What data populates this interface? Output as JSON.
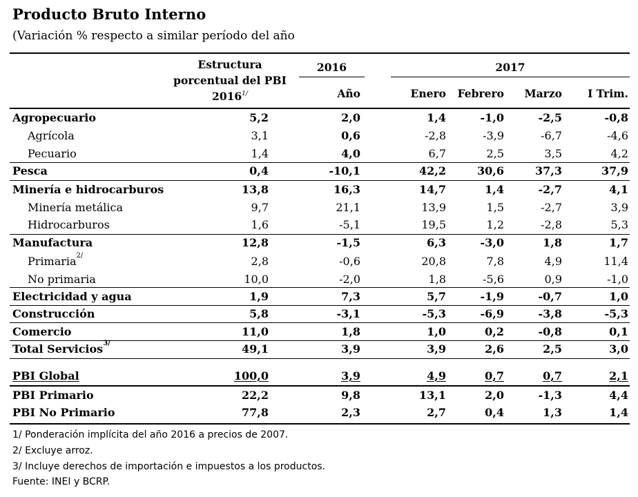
{
  "title": "Producto Bruto Interno",
  "subtitle": "(Variación % respecto a similar período del año",
  "header": {
    "estructura_line1": "Estructura",
    "estructura_line2": "porcentual del PBI",
    "estructura_line3": "2016",
    "estructura_note": "1/",
    "year_2016": "2016",
    "year_2017": "2017",
    "col_ano": "Año",
    "col_enero": "Enero",
    "col_febrero": "Febrero",
    "col_marzo": "Marzo",
    "col_itrim": "I Trim."
  },
  "rows": [
    {
      "label": "Agropecuario",
      "note": "",
      "v": [
        "5,2",
        "2,0",
        "1,4",
        "-1,0",
        "-2,5",
        "-0,8"
      ]
    },
    {
      "label": "Agrícola",
      "note": "",
      "v": [
        "3,1",
        "0,6",
        "-2,8",
        "-3,9",
        "-6,7",
        "-4,6"
      ]
    },
    {
      "label": "Pecuario",
      "note": "",
      "v": [
        "1,4",
        "4,0",
        "6,7",
        "2,5",
        "3,5",
        "4,2"
      ]
    },
    {
      "label": "Pesca",
      "note": "",
      "v": [
        "0,4",
        "-10,1",
        "42,2",
        "30,6",
        "37,3",
        "37,9"
      ]
    },
    {
      "label": "Minería e hidrocarburos",
      "note": "",
      "v": [
        "13,8",
        "16,3",
        "14,7",
        "1,4",
        "-2,7",
        "4,1"
      ]
    },
    {
      "label": "Minería metálica",
      "note": "",
      "v": [
        "9,7",
        "21,1",
        "13,9",
        "1,5",
        "-2,7",
        "3,9"
      ]
    },
    {
      "label": "Hidrocarburos",
      "note": "",
      "v": [
        "1,6",
        "-5,1",
        "19,5",
        "1,2",
        "-2,8",
        "5,3"
      ]
    },
    {
      "label": "Manufactura",
      "note": "",
      "v": [
        "12,8",
        "-1,5",
        "6,3",
        "-3,0",
        "1,8",
        "1,7"
      ]
    },
    {
      "label": "Primaria",
      "note": "2/",
      "v": [
        "2,8",
        "-0,6",
        "20,8",
        "7,8",
        "4,9",
        "11,4"
      ]
    },
    {
      "label": "No primaria",
      "note": "",
      "v": [
        "10,0",
        "-2,0",
        "1,8",
        "-5,6",
        "0,9",
        "-1,0"
      ]
    },
    {
      "label": "Electricidad y agua",
      "note": "",
      "v": [
        "1,9",
        "7,3",
        "5,7",
        "-1,9",
        "-0,7",
        "1,0"
      ]
    },
    {
      "label": "Construcción",
      "note": "",
      "v": [
        "5,8",
        "-3,1",
        "-5,3",
        "-6,9",
        "-3,8",
        "-5,3"
      ]
    },
    {
      "label": "Comercio",
      "note": "",
      "v": [
        "11,0",
        "1,8",
        "1,0",
        "0,2",
        "-0,8",
        "0,1"
      ]
    },
    {
      "label": "Total Servicios",
      "note": "3/",
      "v": [
        "49,1",
        "3,9",
        "3,9",
        "2,6",
        "2,5",
        "3,0"
      ]
    },
    {
      "label": "PBI Global",
      "note": "",
      "v": [
        "100,0",
        "3,9",
        "4,9",
        "0,7",
        "0,7",
        "2,1"
      ]
    },
    {
      "label": "PBI Primario",
      "note": "",
      "v": [
        "22,2",
        "9,8",
        "13,1",
        "2,0",
        "-1,3",
        "4,4"
      ]
    },
    {
      "label": "PBI No Primario",
      "note": "",
      "v": [
        "77,8",
        "2,3",
        "2,7",
        "0,4",
        "1,3",
        "1,4"
      ]
    }
  ],
  "footnotes": [
    "1/ Ponderación implícita del año 2016 a precios de 2007.",
    "2/ Excluye arroz.",
    "3/ Incluye derechos de importación e impuestos a los productos.",
    "Fuente: INEI y BCRP."
  ]
}
